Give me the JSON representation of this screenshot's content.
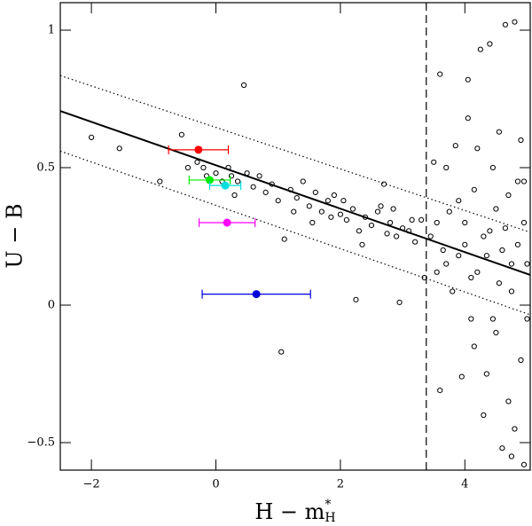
{
  "chart_data": {
    "type": "scatter",
    "xlabel": {
      "text": "H − m",
      "sup": "*",
      "sub": "H"
    },
    "ylabel": "U − B",
    "xlim": [
      -2.5,
      5.05
    ],
    "ylim": [
      -0.6,
      1.1
    ],
    "xticks": [
      {
        "value": -2,
        "label": "−2"
      },
      0,
      2,
      4
    ],
    "yticks": [
      {
        "value": -0.5,
        "label": "−0.5"
      },
      0,
      0.5,
      1
    ],
    "series": [
      {
        "color": "#000000",
        "marker": "open",
        "x": [
          -2,
          -1.55,
          -0.9,
          -0.55,
          -0.45,
          -0.3,
          -0.2,
          -0.15,
          0.0,
          0.1,
          0.2,
          0.25,
          0.3,
          0.35,
          0.45,
          0.5,
          0.6,
          0.7,
          0.8,
          0.9,
          1.0,
          1.1,
          1.05,
          1.2,
          1.3,
          1.4,
          1.5,
          1.6,
          1.7,
          1.8,
          1.9,
          2.0,
          2.1,
          2.2,
          2.25,
          2.3,
          2.4,
          2.5,
          2.6,
          2.7,
          2.75,
          2.8,
          2.9,
          2.95,
          3.0,
          3.1,
          3.2,
          3.3,
          3.35,
          1.25,
          1.55,
          1.85,
          2.05,
          2.35,
          2.65,
          2.85,
          3.15,
          3.45,
          3.5,
          3.55,
          3.6,
          3.6,
          3.65,
          3.7,
          3.75,
          3.8,
          3.85,
          3.9,
          3.95,
          4.0,
          4.05,
          4.05,
          4.1,
          4.1,
          4.15,
          4.2,
          4.25,
          4.3,
          4.35,
          4.35,
          4.4,
          4.45,
          4.5,
          4.5,
          4.55,
          4.6,
          4.65,
          4.7,
          4.7,
          4.75,
          4.8,
          4.8,
          4.85,
          4.9,
          4.9,
          4.95,
          5.0,
          5.0,
          4.6,
          4.75,
          4.95,
          4.2,
          4.3,
          4.0,
          3.7,
          3.9,
          4.55,
          4.65,
          4.85,
          4.4,
          3.55,
          4.15,
          4.95,
          4.45,
          4.75
        ],
        "values": [
          0.61,
          0.57,
          0.45,
          0.62,
          0.5,
          0.52,
          0.5,
          0.47,
          0.48,
          0.45,
          0.5,
          0.47,
          0.4,
          0.45,
          0.8,
          0.48,
          0.43,
          0.47,
          0.41,
          0.44,
          0.38,
          0.24,
          -0.17,
          0.42,
          0.39,
          0.45,
          0.36,
          0.41,
          0.34,
          0.38,
          0.4,
          0.33,
          0.31,
          0.35,
          0.02,
          0.27,
          0.32,
          0.29,
          0.34,
          0.44,
          0.26,
          0.3,
          0.25,
          0.01,
          0.28,
          0.27,
          0.23,
          0.31,
          0.1,
          0.34,
          0.3,
          0.32,
          0.38,
          0.22,
          0.36,
          0.35,
          0.31,
          0.25,
          0.52,
          0.3,
          0.84,
          -0.31,
          0.2,
          0.5,
          0.34,
          0.05,
          0.58,
          0.18,
          -0.26,
          0.3,
          0.68,
          0.82,
          0.1,
          -0.05,
          0.42,
          0.57,
          0.93,
          0.25,
          -0.25,
          0.18,
          0.95,
          0.5,
          0.35,
          -0.1,
          0.63,
          0.2,
          1.02,
          -0.35,
          0.4,
          0.05,
          1.03,
          -0.45,
          0.45,
          0.6,
          -0.2,
          0.3,
          -0.05,
          0.15,
          -0.52,
          -0.55,
          -0.58,
          0.12,
          -0.4,
          0.22,
          0.15,
          0.38,
          0.08,
          0.28,
          0.22,
          0.27,
          0.12,
          -0.15,
          0.45,
          -0.05,
          0.15
        ]
      },
      {
        "color": "#ff0000",
        "marker": "filled",
        "x": [
          -0.28
        ],
        "values": [
          0.565
        ],
        "xerr": [
          0.48
        ]
      },
      {
        "color": "#00ee00",
        "marker": "filled",
        "x": [
          -0.1
        ],
        "values": [
          0.455
        ],
        "xerr": [
          0.33
        ]
      },
      {
        "color": "#00dddd",
        "marker": "filled",
        "x": [
          0.15
        ],
        "values": [
          0.435
        ],
        "xerr": [
          0.25
        ]
      },
      {
        "color": "#ff00ff",
        "marker": "filled",
        "x": [
          0.18
        ],
        "values": [
          0.3
        ],
        "xerr": [
          0.45
        ]
      },
      {
        "color": "#0000dd",
        "marker": "filled",
        "x": [
          0.65
        ],
        "values": [
          0.04
        ],
        "xerr": [
          0.87
        ]
      }
    ],
    "lines": [
      {
        "style": "solid",
        "x": [
          -2.5,
          5.05
        ],
        "values": [
          0.706,
          0.11
        ]
      },
      {
        "style": "dotted",
        "x": [
          -2.5,
          5.05
        ],
        "values": [
          0.835,
          0.265
        ]
      },
      {
        "style": "dotted",
        "x": [
          -2.5,
          5.05
        ],
        "values": [
          0.56,
          -0.035
        ]
      },
      {
        "style": "dashed",
        "x": [
          3.38,
          3.38
        ],
        "values": [
          -0.6,
          1.1
        ]
      }
    ]
  }
}
